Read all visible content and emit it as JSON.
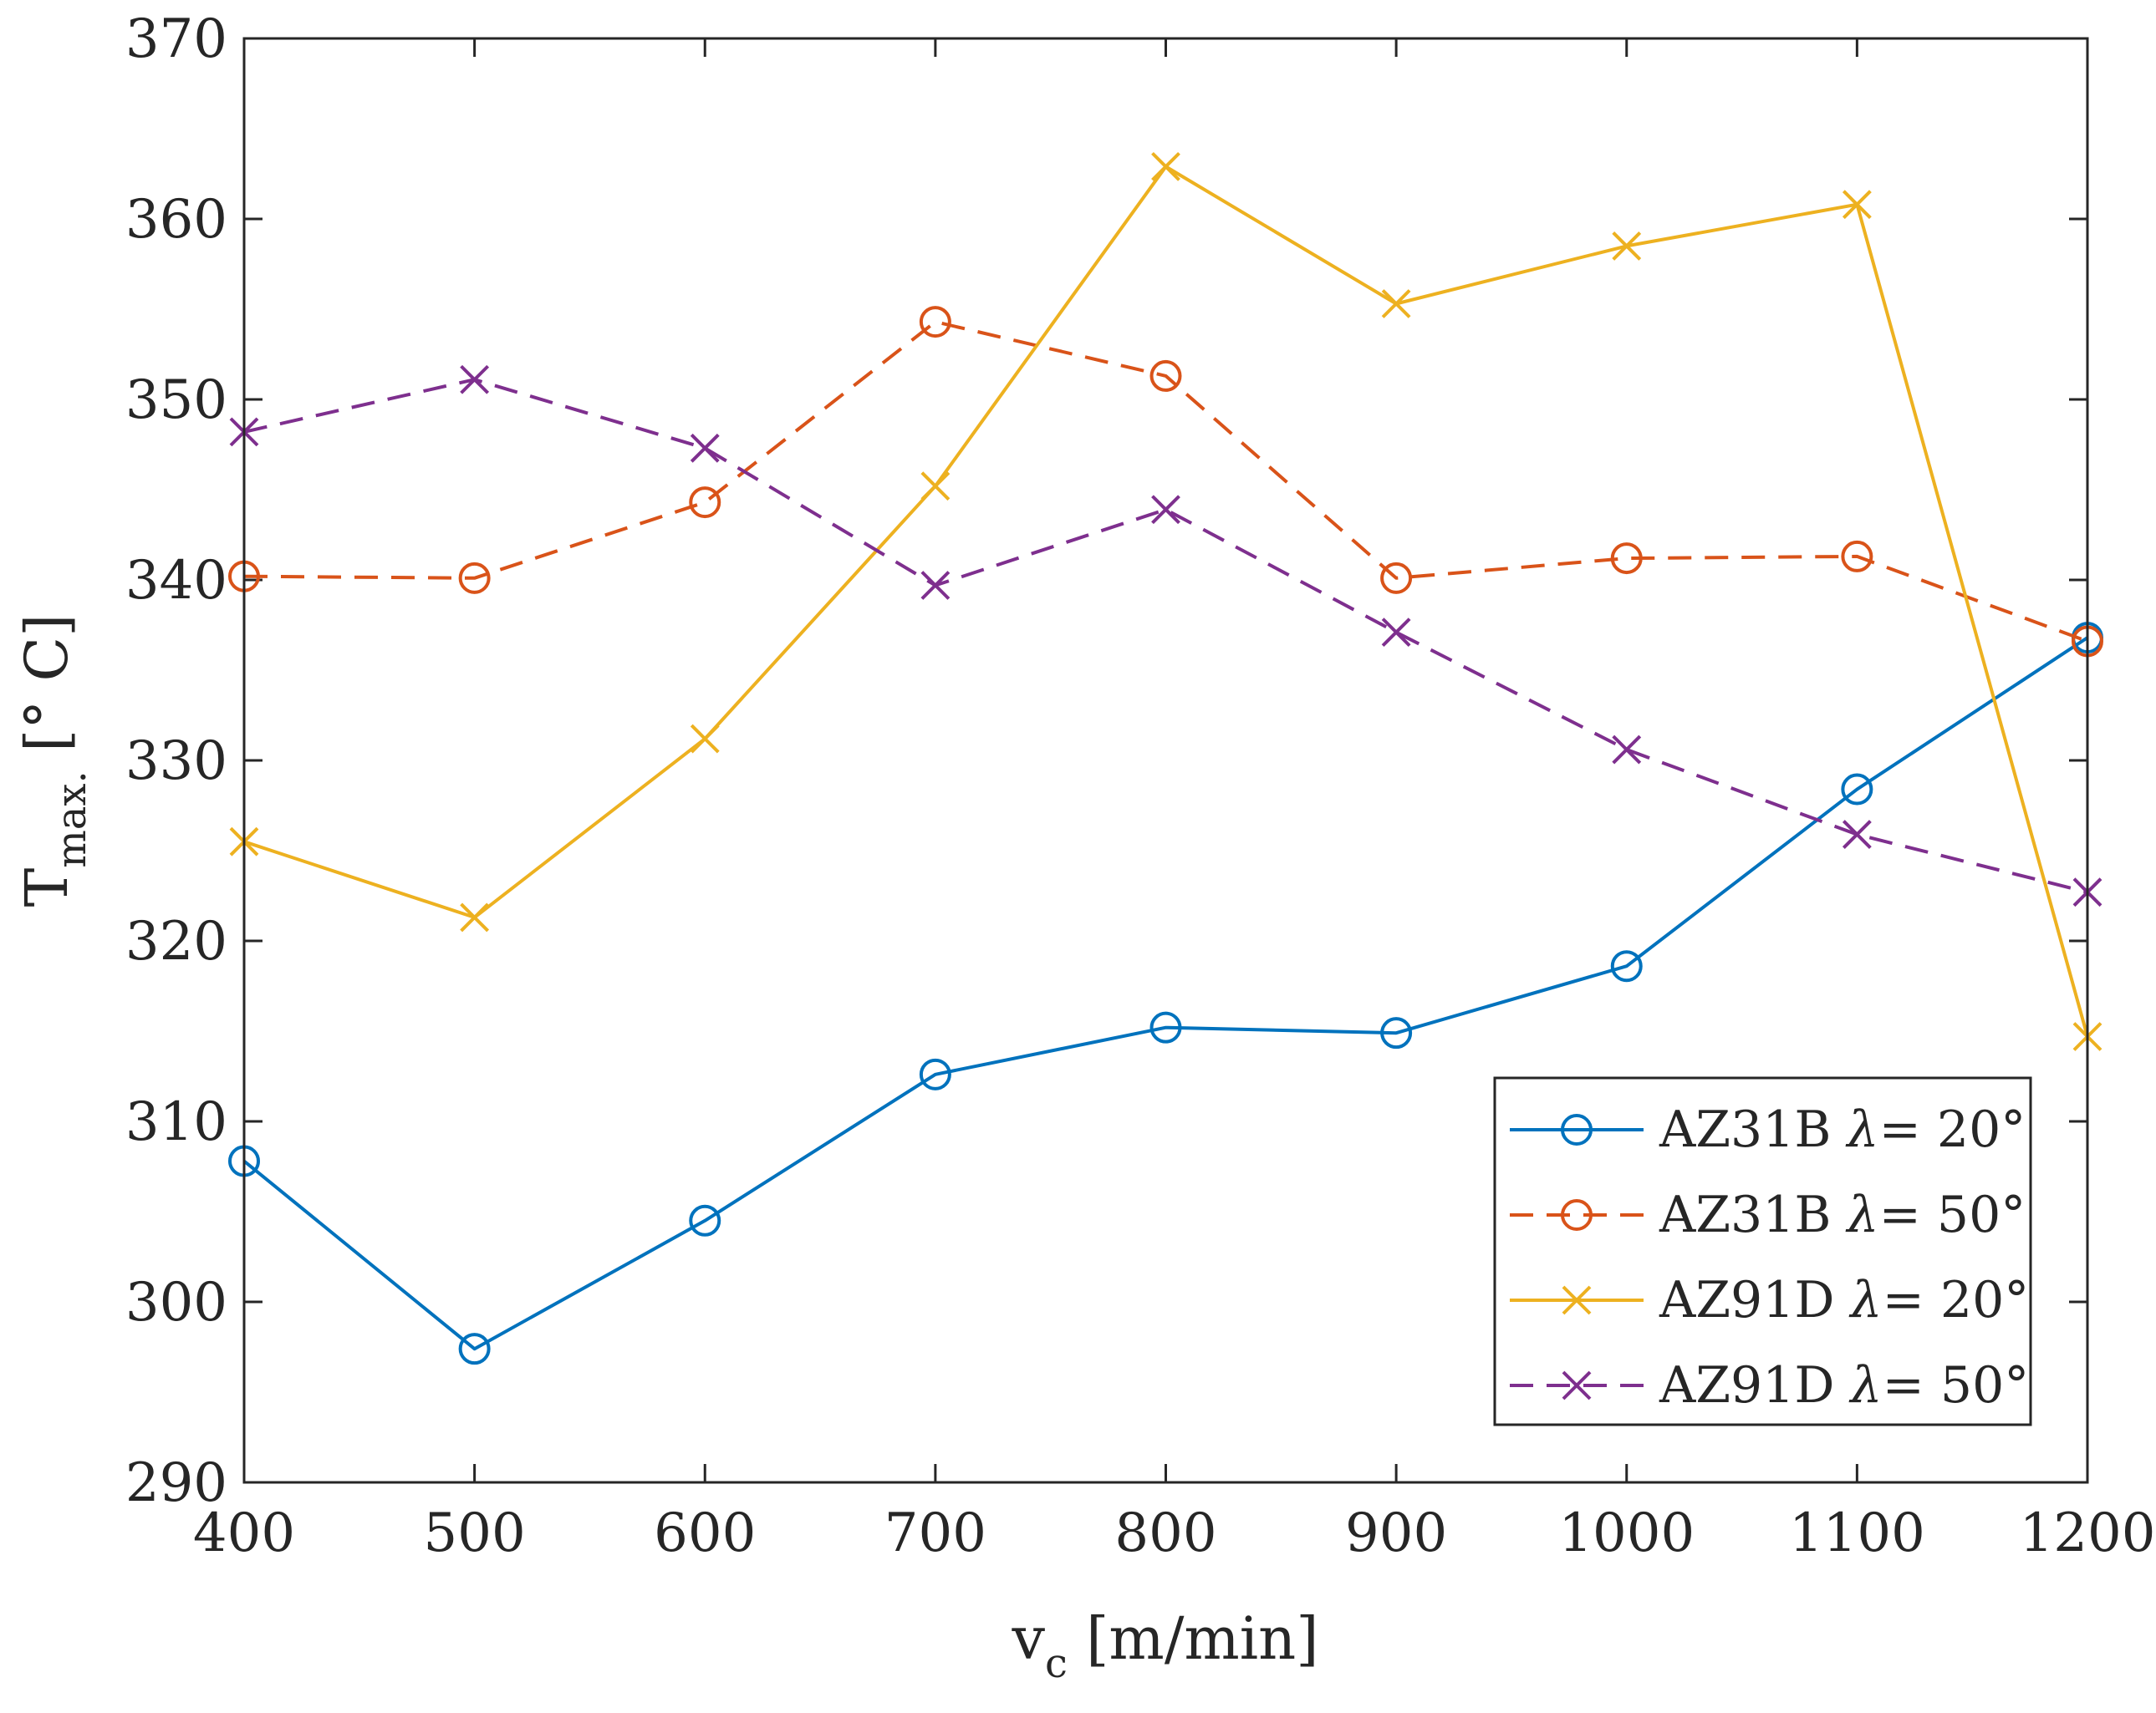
{
  "chart_data": {
    "type": "line",
    "title": "",
    "xlabel": {
      "main": "v",
      "sub": "c",
      "unit": " [m/min]"
    },
    "ylabel": {
      "main": "T",
      "sub": "max.",
      "unit": " [° C]"
    },
    "xlim": [
      400,
      1200
    ],
    "ylim": [
      290,
      370
    ],
    "xticks": [
      400,
      500,
      600,
      700,
      800,
      900,
      1000,
      1100,
      1200
    ],
    "yticks": [
      290,
      300,
      310,
      320,
      330,
      340,
      350,
      360,
      370
    ],
    "grid": false,
    "legend_position": "bottom-right",
    "x": [
      400,
      500,
      600,
      700,
      800,
      900,
      1000,
      1100,
      1200
    ],
    "series": [
      {
        "name": "AZ31B λ= 20°",
        "material": "AZ31B",
        "angle": "λ= 20°",
        "color": "#0072BD",
        "dash": "solid",
        "marker": "circle",
        "values": [
          307.8,
          297.4,
          304.5,
          312.6,
          315.2,
          314.9,
          318.6,
          328.4,
          336.8
        ]
      },
      {
        "name": "AZ31B λ= 50°",
        "material": "AZ31B",
        "angle": "λ= 50°",
        "color": "#D95319",
        "dash": "dashed",
        "marker": "circle",
        "values": [
          340.2,
          340.1,
          344.3,
          354.3,
          351.3,
          340.1,
          341.2,
          341.3,
          336.6
        ]
      },
      {
        "name": "AZ91D λ= 20°",
        "material": "AZ91D",
        "angle": "λ= 20°",
        "color": "#EDB120",
        "dash": "solid",
        "marker": "x",
        "values": [
          325.5,
          321.3,
          331.2,
          345.2,
          362.9,
          355.3,
          358.5,
          360.8,
          314.7
        ]
      },
      {
        "name": "AZ91D λ= 50°",
        "material": "AZ91D",
        "angle": "λ= 50°",
        "color": "#7E2F8E",
        "dash": "dashed",
        "marker": "x",
        "values": [
          348.2,
          351.1,
          347.3,
          339.7,
          343.9,
          337.1,
          330.6,
          325.9,
          322.7
        ]
      }
    ]
  }
}
